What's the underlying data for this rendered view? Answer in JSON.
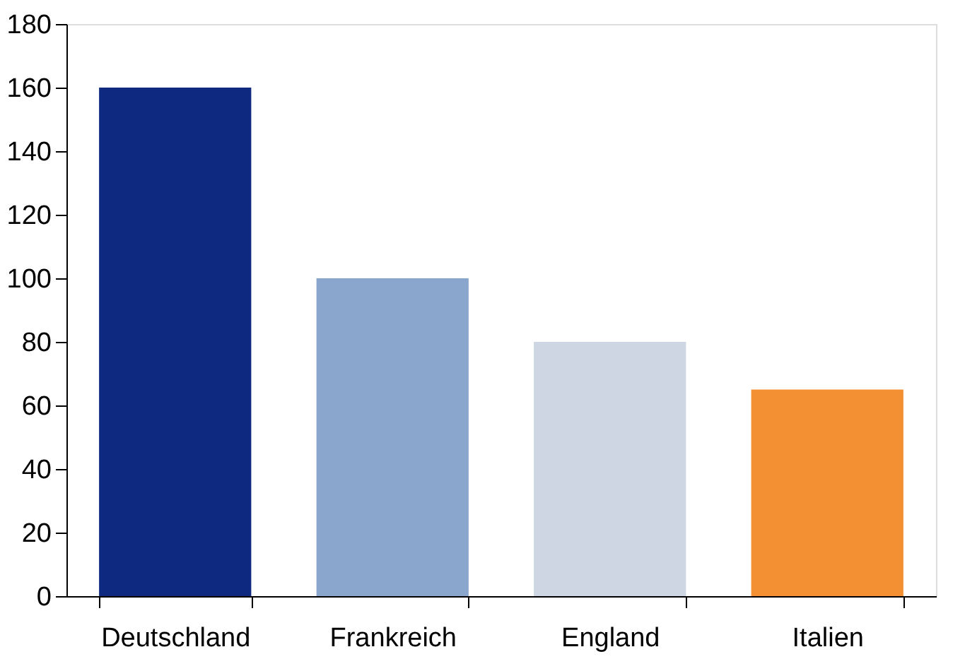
{
  "chart_data": {
    "type": "bar",
    "categories": [
      "Deutschland",
      "Frankreich",
      "England",
      "Italien"
    ],
    "values": [
      160,
      100,
      80,
      65
    ],
    "colors": [
      "#0d2a80",
      "#8aa6cc",
      "#cdd6e2",
      "#f39033"
    ],
    "ylim": [
      0,
      180
    ],
    "yticks": [
      0,
      20,
      40,
      60,
      80,
      100,
      120,
      140,
      160,
      180
    ],
    "grid": false,
    "legend": false
  }
}
